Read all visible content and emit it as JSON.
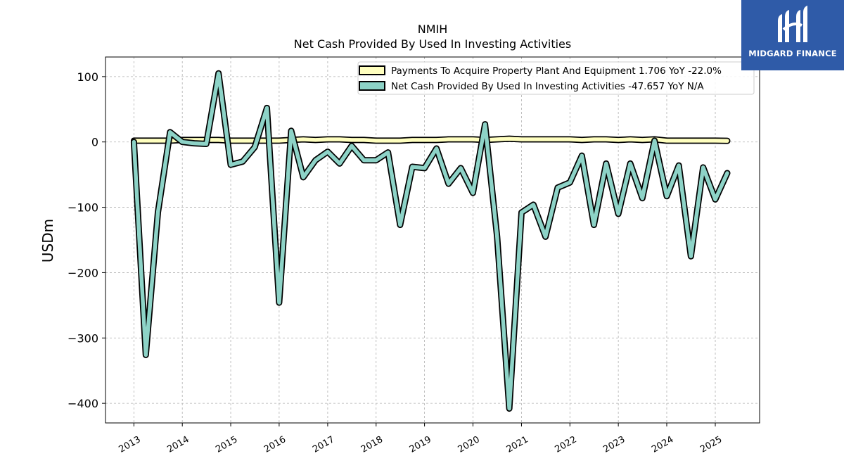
{
  "logo": {
    "text": "MIDGARD FINANCE",
    "background": "#2f5ba8"
  },
  "chart_data": {
    "type": "line",
    "title": "NMIH",
    "subtitle": "Net Cash Provided By Used In Investing Activities",
    "ylabel": "USDm",
    "xlabel": "",
    "ylim": [
      -430,
      130
    ],
    "xlim": [
      "2012-06-01",
      "2025-12-01"
    ],
    "yticks": [
      100,
      0,
      -100,
      -200,
      -300,
      -400
    ],
    "ytick_labels": [
      "100",
      "0",
      "−100",
      "−200",
      "−300",
      "−400"
    ],
    "xticks": [
      "2013-01-01",
      "2014-01-01",
      "2015-01-01",
      "2016-01-01",
      "2017-01-01",
      "2018-01-01",
      "2019-01-01",
      "2020-01-01",
      "2021-01-01",
      "2022-01-01",
      "2023-01-01",
      "2024-01-01",
      "2025-01-01"
    ],
    "xtick_labels": [
      "2013",
      "2014",
      "2015",
      "2016",
      "2017",
      "2018",
      "2019",
      "2020",
      "2021",
      "2022",
      "2023",
      "2024",
      "2025"
    ],
    "grid": true,
    "legend_position": "top-right",
    "series": [
      {
        "name": "Payments To Acquire Property Plant And Equipment  1.706 YoY -22.0%",
        "color": "#ffffbf",
        "x": [
          "2013-01-01",
          "2013-04-01",
          "2013-07-01",
          "2013-10-01",
          "2014-01-01",
          "2014-04-01",
          "2014-07-01",
          "2014-10-01",
          "2015-01-01",
          "2015-04-01",
          "2015-07-01",
          "2015-10-01",
          "2016-01-01",
          "2016-04-01",
          "2016-07-01",
          "2016-10-01",
          "2017-01-01",
          "2017-04-01",
          "2017-07-01",
          "2017-10-01",
          "2018-01-01",
          "2018-04-01",
          "2018-07-01",
          "2018-10-01",
          "2019-01-01",
          "2019-04-01",
          "2019-07-01",
          "2019-10-01",
          "2020-01-01",
          "2020-04-01",
          "2020-07-01",
          "2020-10-01",
          "2021-01-01",
          "2021-04-01",
          "2021-07-01",
          "2021-10-01",
          "2022-01-01",
          "2022-04-01",
          "2022-07-01",
          "2022-10-01",
          "2023-01-01",
          "2023-04-01",
          "2023-07-01",
          "2023-10-01",
          "2024-01-01",
          "2024-04-01",
          "2024-07-01",
          "2024-10-01",
          "2025-01-01",
          "2025-04-01"
        ],
        "values": [
          2,
          2,
          2,
          2,
          3,
          3,
          3,
          3,
          2,
          2,
          2,
          2,
          2,
          3,
          4,
          3,
          4,
          4,
          3,
          3,
          2,
          2,
          2,
          3,
          3,
          3,
          4,
          4,
          4,
          3,
          4,
          5,
          4,
          4,
          4,
          4,
          4,
          3,
          4,
          4,
          3,
          4,
          3,
          4,
          2,
          2,
          2,
          2,
          2,
          1.706
        ]
      },
      {
        "name": "Net Cash Provided By Used In Investing Activities  -47.657 YoY N/A",
        "color": "#8dd3c7",
        "x": [
          "2013-01-01",
          "2013-04-01",
          "2013-07-01",
          "2013-10-01",
          "2014-01-01",
          "2014-04-01",
          "2014-07-01",
          "2014-10-01",
          "2015-01-01",
          "2015-04-01",
          "2015-07-01",
          "2015-10-01",
          "2016-01-01",
          "2016-04-01",
          "2016-07-01",
          "2016-10-01",
          "2017-01-01",
          "2017-04-01",
          "2017-07-01",
          "2017-10-01",
          "2018-01-01",
          "2018-04-01",
          "2018-07-01",
          "2018-10-01",
          "2019-01-01",
          "2019-04-01",
          "2019-07-01",
          "2019-10-01",
          "2020-01-01",
          "2020-04-01",
          "2020-07-01",
          "2020-10-01",
          "2021-01-01",
          "2021-04-01",
          "2021-07-01",
          "2021-10-01",
          "2022-01-01",
          "2022-04-01",
          "2022-07-01",
          "2022-10-01",
          "2023-01-01",
          "2023-04-01",
          "2023-07-01",
          "2023-10-01",
          "2024-01-01",
          "2024-04-01",
          "2024-07-01",
          "2024-10-01",
          "2025-01-01",
          "2025-04-01"
        ],
        "values": [
          0,
          -326,
          -108,
          15,
          0,
          -2,
          -3,
          105,
          -35,
          -30,
          -8,
          52,
          -246,
          17,
          -54,
          -28,
          -15,
          -33,
          -6,
          -28,
          -28,
          -16,
          -127,
          -38,
          -40,
          -10,
          -64,
          -40,
          -78,
          27,
          -145,
          -408,
          -108,
          -96,
          -145,
          -70,
          -62,
          -21,
          -127,
          -33,
          -110,
          -33,
          -86,
          2,
          -83,
          -36,
          -175,
          -39,
          -88,
          -47.657
        ]
      }
    ]
  }
}
